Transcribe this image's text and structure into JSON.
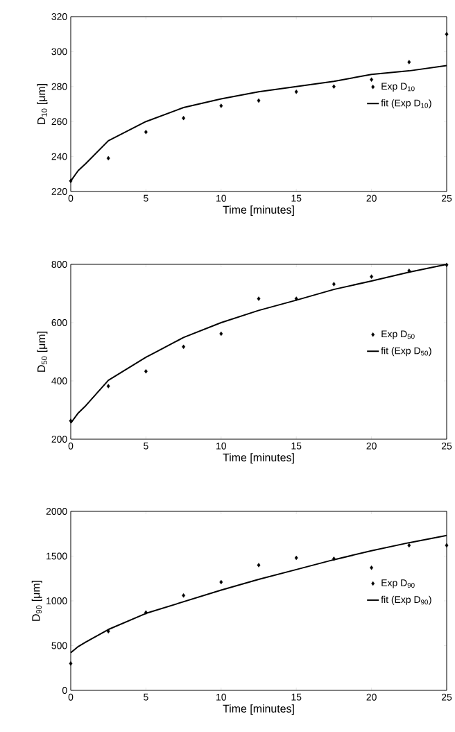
{
  "chart_data": [
    {
      "type": "scatter",
      "xlabel": "Time [minutes]",
      "ylabel": "D$_{10}$ [μm]",
      "xlim": [
        0,
        25
      ],
      "ylim": [
        220,
        320
      ],
      "xticks": [
        0,
        5,
        10,
        15,
        20,
        25
      ],
      "yticks": [
        220,
        240,
        260,
        280,
        300,
        320
      ],
      "legend": "right",
      "x": [
        0,
        2.5,
        5,
        7.5,
        10,
        12.5,
        15,
        17.5,
        20,
        22.5,
        25
      ],
      "series": [
        {
          "name": "Exp D$_{10}$",
          "marker": "diamond",
          "color": "#000000",
          "values": [
            226,
            239,
            254,
            262,
            269,
            272,
            277,
            280,
            284,
            294,
            310
          ]
        },
        {
          "name": "fit (Exp D$_{10}$)",
          "type": "line",
          "marker": "none",
          "color": "#000000",
          "x": [
            0,
            0.5,
            1,
            2.5,
            5,
            7.5,
            10,
            12.5,
            15,
            17.5,
            20,
            22.5,
            25
          ],
          "values": [
            226,
            232,
            236,
            249,
            260,
            268,
            273,
            277,
            280,
            283,
            287,
            289,
            292
          ]
        }
      ]
    },
    {
      "type": "scatter",
      "xlabel": "Time [minutes]",
      "ylabel": "D$_{50}$ [μm]",
      "xlim": [
        0,
        25
      ],
      "ylim": [
        200,
        800
      ],
      "xticks": [
        0,
        5,
        10,
        15,
        20,
        25
      ],
      "yticks": [
        200,
        400,
        600,
        800
      ],
      "legend": "right",
      "x": [
        0,
        2.5,
        5,
        7.5,
        10,
        12.5,
        15,
        17.5,
        20,
        22.5,
        25
      ],
      "series": [
        {
          "name": "Exp D$_{50}$",
          "marker": "diamond",
          "color": "#000000",
          "values": [
            263,
            382,
            433,
            517,
            562,
            682,
            682,
            732,
            758,
            778,
            798
          ]
        },
        {
          "name": "fit (Exp D$_{50}$)",
          "type": "line",
          "marker": "none",
          "color": "#000000",
          "x": [
            0,
            0.5,
            1,
            2.5,
            5,
            7.5,
            10,
            12.5,
            15,
            17.5,
            20,
            22.5,
            25
          ],
          "values": [
            255,
            290,
            315,
            402,
            481,
            549,
            600,
            642,
            677,
            714,
            743,
            773,
            800
          ]
        }
      ]
    },
    {
      "type": "scatter",
      "xlabel": "Time [minutes]",
      "ylabel": "D$_{90}$ [μm]",
      "xlim": [
        0,
        25
      ],
      "ylim": [
        0,
        2000
      ],
      "xticks": [
        0,
        5,
        10,
        15,
        20,
        25
      ],
      "yticks": [
        0,
        500,
        1000,
        1500,
        2000
      ],
      "legend": "right",
      "x": [
        0,
        2.5,
        5,
        7.5,
        10,
        12.5,
        15,
        17.5,
        20,
        22.5,
        25
      ],
      "series": [
        {
          "name": "Exp D$_{90}$",
          "marker": "diamond",
          "color": "#000000",
          "values": [
            300,
            660,
            870,
            1060,
            1210,
            1400,
            1480,
            1470,
            1370,
            1620,
            1620
          ]
        },
        {
          "name": "fit (Exp D$_{90}$)",
          "type": "line",
          "marker": "none",
          "color": "#000000",
          "x": [
            0,
            0.5,
            1,
            2.5,
            5,
            7.5,
            10,
            12.5,
            15,
            17.5,
            20,
            22.5,
            25
          ],
          "values": [
            420,
            490,
            540,
            680,
            860,
            990,
            1120,
            1240,
            1350,
            1460,
            1560,
            1650,
            1730
          ]
        }
      ]
    }
  ]
}
